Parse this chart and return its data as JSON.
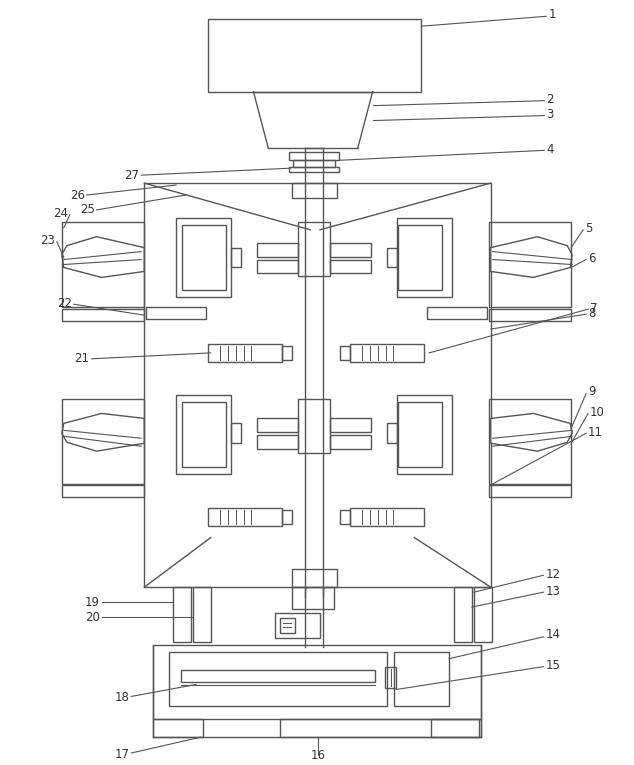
{
  "bg_color": "#ffffff",
  "line_color": "#555555",
  "label_color": "#333333",
  "fig_width": 6.34,
  "fig_height": 7.65,
  "dpi": 100
}
